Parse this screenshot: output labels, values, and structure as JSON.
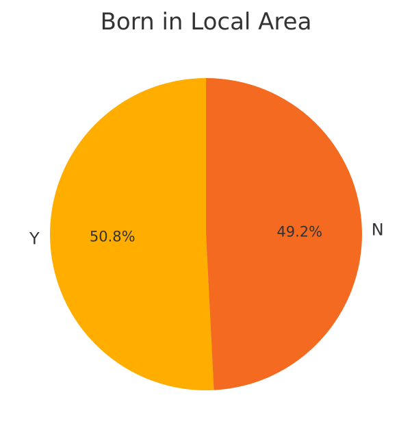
{
  "chart_data": {
    "type": "pie",
    "title": "Born in Local Area",
    "slices": [
      {
        "label": "Y",
        "value": 50.8,
        "percent_label": "50.8%",
        "color": "#FFAE00"
      },
      {
        "label": "N",
        "value": 49.2,
        "percent_label": "49.2%",
        "color": "#F46A21"
      }
    ],
    "start_angle_deg": 90,
    "direction": "counterclockwise",
    "legend": "none"
  }
}
